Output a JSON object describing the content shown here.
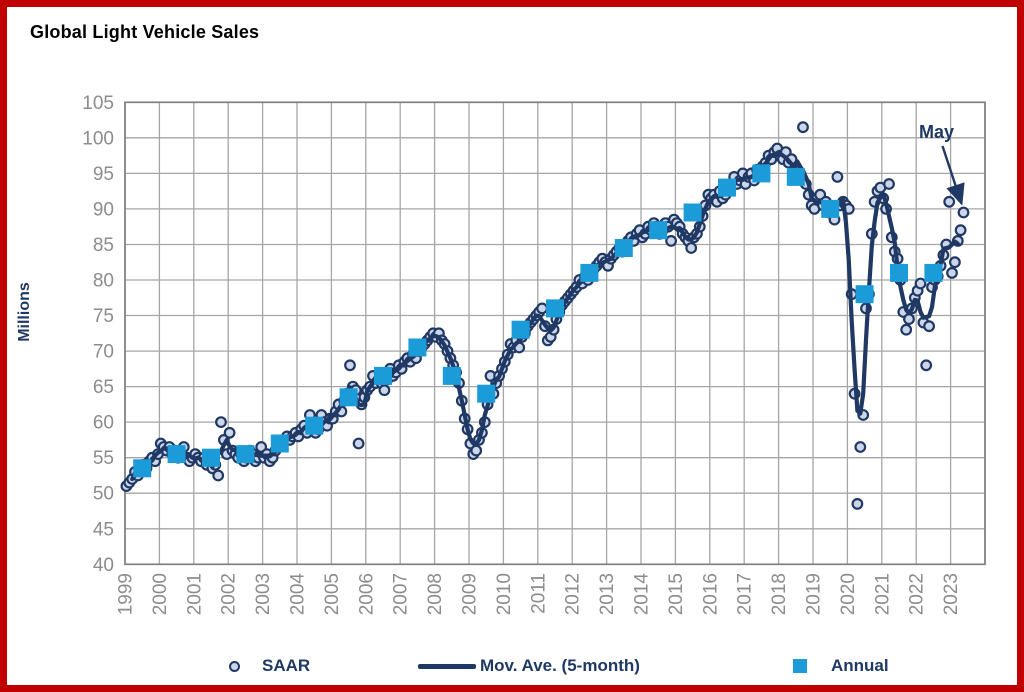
{
  "page": {
    "title": "Global Light Vehicle Sales"
  },
  "legend": {
    "saar": "SAAR",
    "mov_ave": "Mov. Ave. (5-month)",
    "annual": "Annual"
  },
  "chart_data": {
    "type": "line",
    "title": "Global Light Vehicle Sales",
    "xlabel": "",
    "ylabel": "Millions",
    "ylim": [
      40,
      105
    ],
    "grid": true,
    "legend_position": "bottom",
    "y_ticks": [
      105,
      100,
      95,
      90,
      85,
      80,
      75,
      70,
      65,
      60,
      55,
      50,
      45,
      40
    ],
    "x_ticks": [
      "1999",
      "2000",
      "2001",
      "2002",
      "2003",
      "2004",
      "2005",
      "2006",
      "2007",
      "2008",
      "2009",
      "2010",
      "2011",
      "2012",
      "2013",
      "2014",
      "2015",
      "2016",
      "2017",
      "2018",
      "2019",
      "2020",
      "2021",
      "2022",
      "2023"
    ],
    "annotation": {
      "label": "May",
      "points_to": "2023-05",
      "value": 89.5
    },
    "series": [
      {
        "name": "SAAR",
        "type": "scatter",
        "marker": "circle",
        "frequency": "monthly",
        "start": "1999-01",
        "end": "2023-05",
        "values": [
          51.0,
          51.5,
          52.0,
          53.0,
          52.5,
          53.5,
          54.0,
          53.5,
          54.5,
          55.0,
          54.5,
          55.5,
          57.0,
          56.5,
          56.0,
          56.5,
          55.5,
          56.0,
          55.0,
          55.5,
          56.5,
          55.0,
          54.5,
          55.0,
          55.5,
          55.0,
          54.5,
          55.0,
          54.0,
          54.5,
          53.5,
          54.0,
          52.5,
          60.0,
          57.5,
          55.5,
          58.5,
          56.0,
          55.5,
          55.0,
          55.5,
          54.5,
          55.0,
          56.0,
          55.5,
          54.5,
          55.0,
          56.5,
          55.0,
          55.5,
          54.5,
          55.0,
          56.0,
          56.5,
          57.0,
          57.5,
          58.0,
          57.5,
          58.0,
          58.5,
          58.0,
          59.0,
          59.5,
          58.5,
          61.0,
          59.5,
          58.5,
          59.0,
          61.0,
          60.0,
          59.5,
          60.5,
          60.5,
          61.5,
          62.5,
          61.5,
          63.0,
          64.0,
          68.0,
          65.0,
          64.5,
          57.0,
          62.5,
          63.5,
          64.5,
          65.0,
          66.5,
          65.5,
          66.0,
          65.5,
          64.5,
          66.0,
          67.5,
          66.5,
          67.0,
          68.0,
          67.5,
          68.5,
          69.0,
          68.5,
          69.5,
          69.0,
          70.0,
          70.5,
          71.0,
          71.5,
          72.0,
          72.5,
          72.0,
          72.5,
          71.5,
          71.0,
          70.0,
          69.0,
          68.0,
          67.0,
          65.5,
          63.0,
          60.5,
          59.0,
          57.0,
          55.5,
          56.0,
          57.5,
          58.5,
          60.0,
          62.5,
          66.5,
          64.0,
          65.5,
          66.5,
          67.5,
          68.5,
          69.5,
          71.0,
          70.5,
          71.5,
          70.5,
          72.0,
          72.5,
          73.5,
          74.0,
          74.5,
          75.0,
          75.5,
          76.0,
          73.5,
          71.5,
          72.0,
          73.0,
          74.5,
          75.5,
          76.5,
          77.0,
          77.5,
          78.0,
          78.5,
          79.0,
          80.0,
          79.5,
          80.5,
          80.0,
          81.0,
          81.5,
          82.0,
          82.5,
          83.0,
          82.5,
          82.0,
          83.0,
          83.5,
          84.0,
          84.5,
          84.0,
          85.0,
          85.5,
          86.0,
          85.5,
          86.5,
          87.0,
          86.0,
          86.5,
          87.5,
          87.0,
          88.0,
          87.5,
          86.5,
          87.0,
          88.0,
          87.5,
          85.5,
          88.5,
          88.0,
          87.5,
          86.5,
          86.0,
          85.5,
          84.5,
          86.0,
          86.5,
          87.5,
          89.0,
          90.5,
          92.0,
          91.5,
          92.0,
          91.0,
          92.5,
          91.5,
          92.0,
          93.0,
          93.5,
          94.5,
          93.5,
          94.0,
          95.0,
          93.5,
          94.5,
          95.0,
          94.0,
          95.5,
          95.0,
          96.0,
          96.5,
          97.5,
          97.0,
          98.0,
          98.5,
          97.5,
          97.0,
          98.0,
          96.5,
          97.0,
          95.5,
          94.5,
          95.0,
          101.5,
          93.5,
          92.0,
          90.5,
          90.0,
          91.5,
          92.0,
          90.5,
          91.0,
          89.5,
          90.0,
          88.5,
          94.5,
          90.5,
          91.0,
          90.5,
          90.0,
          78.0,
          64.0,
          48.5,
          56.5,
          61.0,
          76.0,
          78.0,
          86.5,
          91.0,
          92.5,
          93.0,
          91.5,
          90.0,
          93.5,
          86.0,
          84.0,
          83.0,
          80.0,
          75.5,
          73.0,
          74.5,
          76.0,
          77.5,
          78.5,
          79.5,
          74.0,
          68.0,
          73.5,
          79.0,
          80.0,
          80.5,
          82.0,
          83.5,
          85.0,
          91.0,
          81.0,
          82.5,
          85.5,
          87.0,
          89.5
        ]
      },
      {
        "name": "Mov. Ave. (5-month)",
        "type": "line",
        "derived_from": "SAAR",
        "window": 5,
        "note": "5-month centered moving average of the SAAR series"
      },
      {
        "name": "Annual",
        "type": "scatter",
        "marker": "square",
        "years": [
          1999,
          2000,
          2001,
          2002,
          2003,
          2004,
          2005,
          2006,
          2007,
          2008,
          2009,
          2010,
          2011,
          2012,
          2013,
          2014,
          2015,
          2016,
          2017,
          2018,
          2019,
          2020,
          2021,
          2022
        ],
        "values": [
          53.5,
          55.5,
          55.0,
          55.5,
          57.0,
          59.5,
          63.5,
          66.5,
          70.5,
          66.5,
          64.0,
          73.0,
          76.0,
          81.0,
          84.5,
          87.0,
          89.5,
          93.0,
          95.0,
          94.5,
          90.0,
          78.0,
          81.0,
          81.0
        ]
      }
    ],
    "colors": {
      "navy": "#1F3864",
      "saar_fill": "#CDD5E9",
      "annual_blue": "#1B9CD8",
      "gridline": "#A6A6A6",
      "tick_text": "#8C8C8C",
      "page_border": "#C00000"
    }
  }
}
